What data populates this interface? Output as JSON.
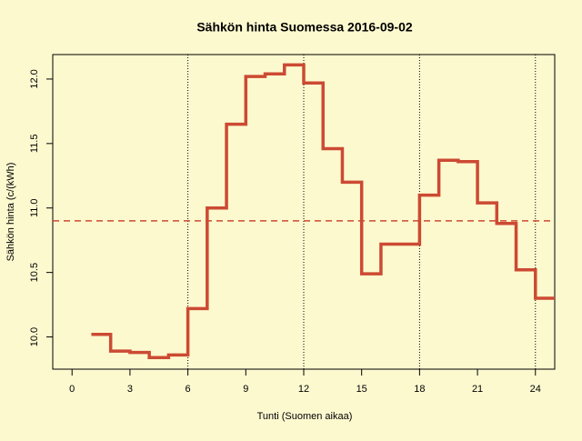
{
  "chart_data": {
    "type": "step",
    "title": "Sähkön hinta Suomessa 2016-09-02",
    "x_label": "Tunti (Suomen aikaa)",
    "y_label": "Sähkön hinta (c/(kWh)",
    "x": [
      1,
      2,
      3,
      4,
      5,
      6,
      7,
      8,
      9,
      10,
      11,
      12,
      13,
      14,
      15,
      16,
      17,
      18,
      19,
      20,
      21,
      22,
      23,
      24
    ],
    "values": [
      10.02,
      9.89,
      9.88,
      9.84,
      9.86,
      10.22,
      11.0,
      11.65,
      12.02,
      12.04,
      12.11,
      11.97,
      11.46,
      11.2,
      10.49,
      10.72,
      10.72,
      11.1,
      11.37,
      11.36,
      11.04,
      10.88,
      10.52,
      10.3
    ],
    "color": "#cc4a33",
    "xlim": [
      -1,
      25
    ],
    "ylim": [
      9.75,
      12.19
    ],
    "xticks": [
      0,
      3,
      6,
      9,
      12,
      15,
      18,
      21,
      24
    ],
    "yticks": [
      {
        "value": 10,
        "label": "10.0"
      },
      10.5,
      {
        "value": 11,
        "label": "11.0"
      },
      11.5,
      {
        "value": 12,
        "label": "12.0"
      }
    ],
    "mean_line": 10.9,
    "vlines": [
      6,
      12,
      18,
      24
    ]
  }
}
